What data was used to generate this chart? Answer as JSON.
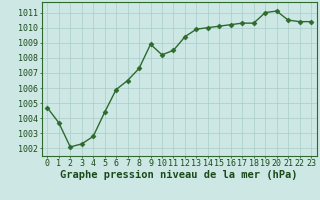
{
  "x": [
    0,
    1,
    2,
    3,
    4,
    5,
    6,
    7,
    8,
    9,
    10,
    11,
    12,
    13,
    14,
    15,
    16,
    17,
    18,
    19,
    20,
    21,
    22,
    23
  ],
  "y": [
    1004.7,
    1003.7,
    1002.1,
    1002.3,
    1002.8,
    1004.4,
    1005.9,
    1006.5,
    1007.3,
    1008.9,
    1008.2,
    1008.5,
    1009.4,
    1009.9,
    1010.0,
    1010.1,
    1010.2,
    1010.3,
    1010.3,
    1011.0,
    1011.1,
    1010.5,
    1010.4,
    1010.4
  ],
  "line_color": "#2d6a2d",
  "marker": "D",
  "marker_size": 2.5,
  "background_color": "#cde8e4",
  "grid_color": "#a8ccc8",
  "xlabel": "Graphe pression niveau de la mer (hPa)",
  "xlabel_fontsize": 7.5,
  "xlabel_color": "#1a4a1a",
  "ylabel_ticks": [
    1002,
    1003,
    1004,
    1005,
    1006,
    1007,
    1008,
    1009,
    1010,
    1011
  ],
  "xlim": [
    -0.5,
    23.5
  ],
  "ylim": [
    1001.5,
    1011.7
  ],
  "tick_color": "#1a4a1a",
  "tick_fontsize": 6.0,
  "spine_color": "#2d6a2d",
  "linewidth": 1.0
}
